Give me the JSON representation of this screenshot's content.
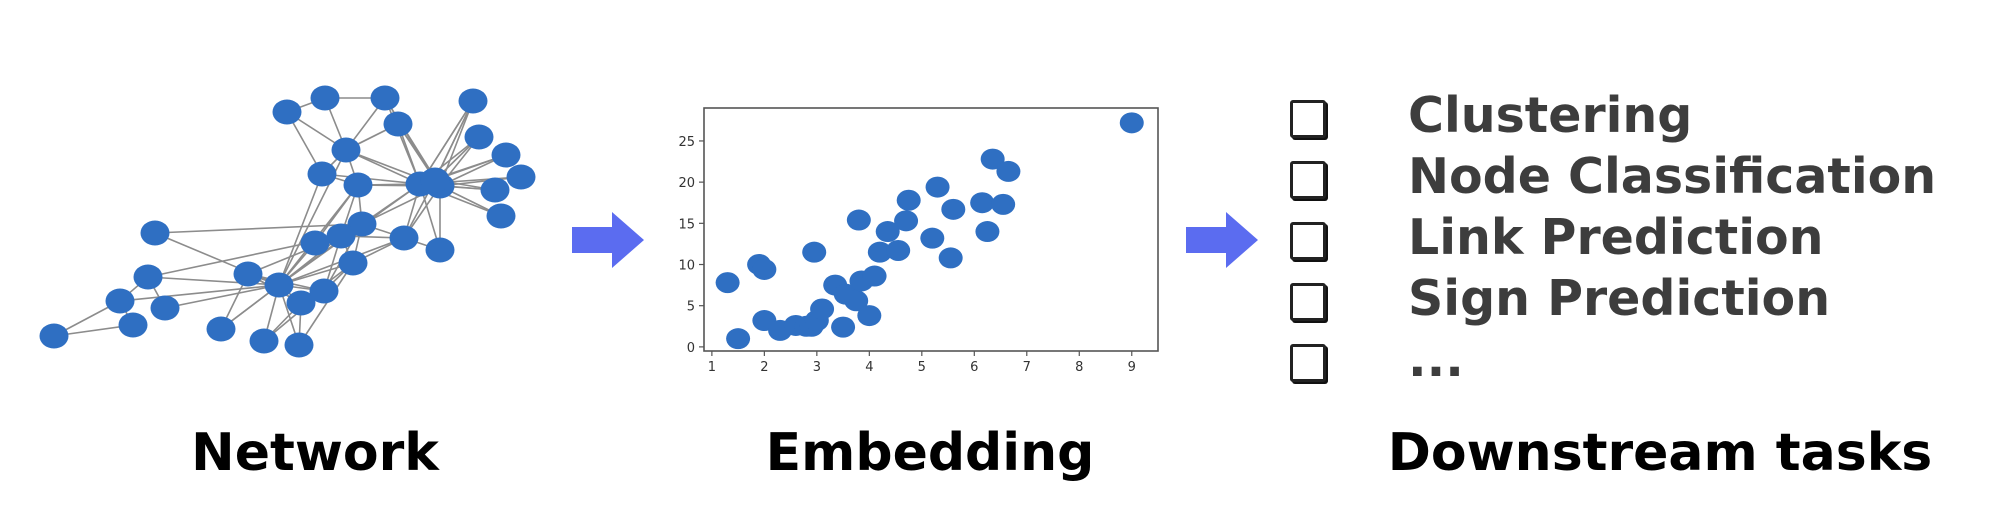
{
  "panels": {
    "network": {
      "caption": "Network"
    },
    "embedding": {
      "caption": "Embedding"
    },
    "downstream": {
      "caption": "Downstream tasks"
    }
  },
  "tasks": [
    {
      "label": "Clustering"
    },
    {
      "label": "Node Classification"
    },
    {
      "label": "Link Prediction"
    },
    {
      "label": "Sign Prediction"
    },
    {
      "label": "..."
    }
  ],
  "colors": {
    "node": "#2f6fc2",
    "edge": "#8c8c8c",
    "arrow": "#5b6cf0",
    "caption_text": "#000000",
    "task_text": "#3d3d3d"
  },
  "icons": {
    "arrow": "right-arrow-icon",
    "checkbox": "checkbox-icon"
  },
  "chart_data": {
    "type": "scatter",
    "title": "",
    "xlabel": "",
    "ylabel": "",
    "xlim": [
      0.85,
      9.5
    ],
    "ylim": [
      -0.5,
      29
    ],
    "xticks": [
      1,
      2,
      3,
      4,
      5,
      6,
      7,
      8,
      9
    ],
    "yticks": [
      0,
      5,
      10,
      15,
      20,
      25
    ],
    "grid": false,
    "color": "#2f6fc2",
    "points": [
      [
        1.5,
        1.0
      ],
      [
        1.3,
        7.8
      ],
      [
        1.9,
        10.0
      ],
      [
        2.0,
        9.4
      ],
      [
        2.0,
        3.2
      ],
      [
        2.3,
        2.0
      ],
      [
        2.6,
        2.6
      ],
      [
        2.8,
        2.5
      ],
      [
        2.9,
        2.5
      ],
      [
        3.0,
        3.2
      ],
      [
        3.1,
        4.6
      ],
      [
        2.95,
        11.5
      ],
      [
        3.35,
        7.5
      ],
      [
        3.5,
        2.4
      ],
      [
        3.55,
        6.4
      ],
      [
        3.75,
        5.6
      ],
      [
        3.8,
        15.4
      ],
      [
        3.85,
        8.0
      ],
      [
        4.0,
        3.8
      ],
      [
        4.1,
        8.6
      ],
      [
        4.2,
        11.5
      ],
      [
        4.35,
        14.0
      ],
      [
        4.55,
        11.7
      ],
      [
        4.7,
        15.3
      ],
      [
        4.75,
        17.8
      ],
      [
        5.2,
        13.2
      ],
      [
        5.3,
        19.4
      ],
      [
        5.55,
        10.8
      ],
      [
        5.6,
        16.7
      ],
      [
        6.15,
        17.5
      ],
      [
        6.25,
        14.0
      ],
      [
        6.35,
        22.8
      ],
      [
        6.55,
        17.3
      ],
      [
        6.65,
        21.3
      ],
      [
        9.0,
        27.2
      ]
    ]
  }
}
